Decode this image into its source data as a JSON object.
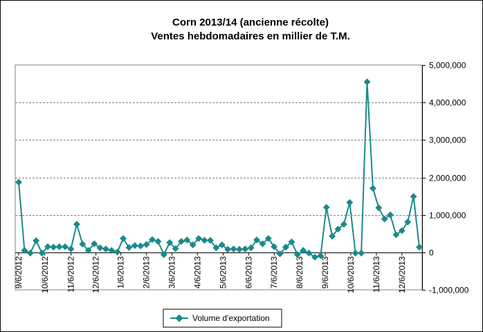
{
  "chart_data": {
    "type": "line",
    "title": "Corn 2013/14 (ancienne récolte)",
    "subtitle": "Ventes hebdomadaires en millier de T.M.",
    "xlabel": "",
    "ylabel": "",
    "ylim": [
      -1000000,
      5000000
    ],
    "y_ticks": [
      -1000000,
      0,
      1000000,
      2000000,
      3000000,
      4000000,
      5000000
    ],
    "y_tick_labels": [
      "-1,000,000",
      "0",
      "1,000,000",
      "2,000,000",
      "3,000,000",
      "4,000,000",
      "5,000,000"
    ],
    "y_axis_side": "right",
    "grid": true,
    "x_tick_labels": [
      {
        "label": "9/6/2012",
        "index": 0
      },
      {
        "label": "10/6/2012",
        "index": 4.5
      },
      {
        "label": "11/6/2012",
        "index": 9
      },
      {
        "label": "12/6/2012",
        "index": 13.3
      },
      {
        "label": "1/6/2013",
        "index": 17.6
      },
      {
        "label": "2/6/2013",
        "index": 22
      },
      {
        "label": "3/6/2013",
        "index": 26.4
      },
      {
        "label": "4/6/2013",
        "index": 30.8
      },
      {
        "label": "5/6/2013",
        "index": 35.2
      },
      {
        "label": "6/6/2013",
        "index": 39.6
      },
      {
        "label": "7/6/2013",
        "index": 44
      },
      {
        "label": "8/6/2013",
        "index": 48.4
      },
      {
        "label": "9/6/2013",
        "index": 52.8
      },
      {
        "label": "10/6/2013",
        "index": 57.2
      },
      {
        "label": "11/6/2013",
        "index": 61.6
      },
      {
        "label": "12/6/2013",
        "index": 66
      }
    ],
    "series": [
      {
        "name": "Volume d'exportation",
        "color": "#1b8a8a",
        "values": [
          1870000,
          50000,
          -20000,
          310000,
          -20000,
          150000,
          140000,
          150000,
          150000,
          90000,
          750000,
          220000,
          50000,
          230000,
          120000,
          90000,
          50000,
          10000,
          370000,
          130000,
          180000,
          170000,
          210000,
          340000,
          290000,
          -60000,
          260000,
          100000,
          290000,
          330000,
          200000,
          370000,
          320000,
          320000,
          120000,
          200000,
          80000,
          90000,
          80000,
          90000,
          120000,
          330000,
          230000,
          370000,
          150000,
          -40000,
          140000,
          280000,
          -60000,
          50000,
          -20000,
          -130000,
          -90000,
          1200000,
          430000,
          620000,
          750000,
          1330000,
          -20000,
          -20000,
          4550000,
          1710000,
          1190000,
          890000,
          1000000,
          470000,
          580000,
          810000,
          1490000,
          140000
        ]
      }
    ]
  }
}
